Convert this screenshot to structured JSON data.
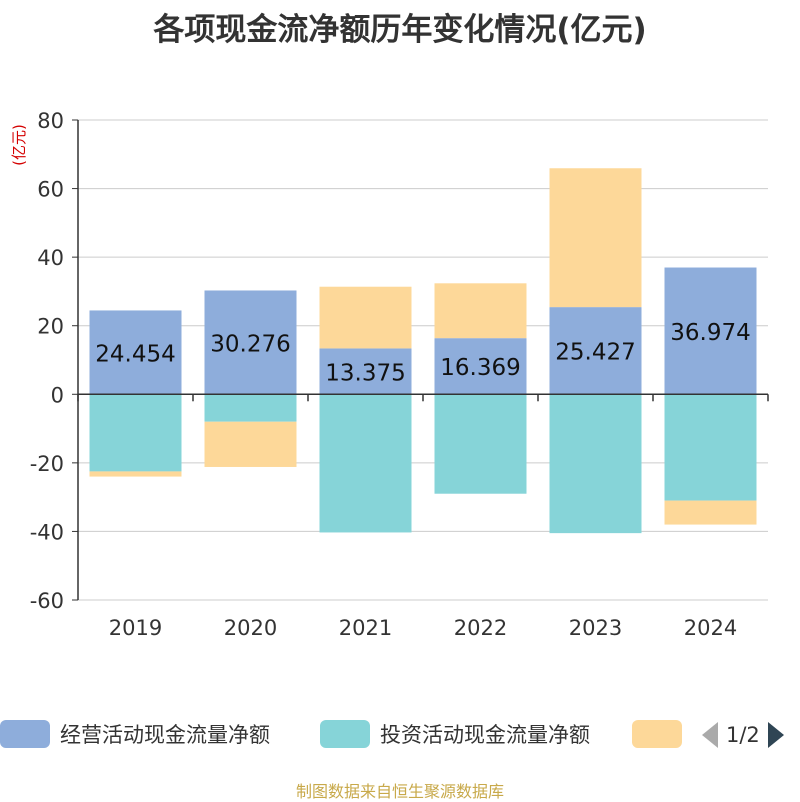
{
  "title": "各项现金流净额历年变化情况(亿元)",
  "footer": "制图数据来自恒生聚源数据库",
  "pager_text": "1/2",
  "chart_data": {
    "type": "bar",
    "stacked": true,
    "categories": [
      "2019",
      "2020",
      "2021",
      "2022",
      "2023",
      "2024"
    ],
    "ylabel": "(亿元)",
    "ylim": [
      -60,
      80
    ],
    "yticks": [
      -60,
      -40,
      -20,
      0,
      20,
      40,
      60,
      80
    ],
    "grid": true,
    "legend_position": "bottom",
    "series": [
      {
        "name": "经营活动现金流量净额",
        "color": "#8eaddb",
        "values": [
          24.454,
          30.276,
          13.375,
          16.369,
          25.427,
          36.974
        ],
        "labels": [
          "24.454",
          "30.276",
          "13.375",
          "16.369",
          "25.427",
          "36.974"
        ]
      },
      {
        "name": "投资活动现金流量净额",
        "color": "#86d4d8",
        "values": [
          -22.5,
          -8.0,
          -40.3,
          -29.0,
          -40.5,
          -31.0
        ]
      },
      {
        "name": "",
        "color": "#fdd899",
        "values": [
          -1.5,
          -13.2,
          18.0,
          16.0,
          40.5,
          -7.0
        ]
      }
    ]
  }
}
